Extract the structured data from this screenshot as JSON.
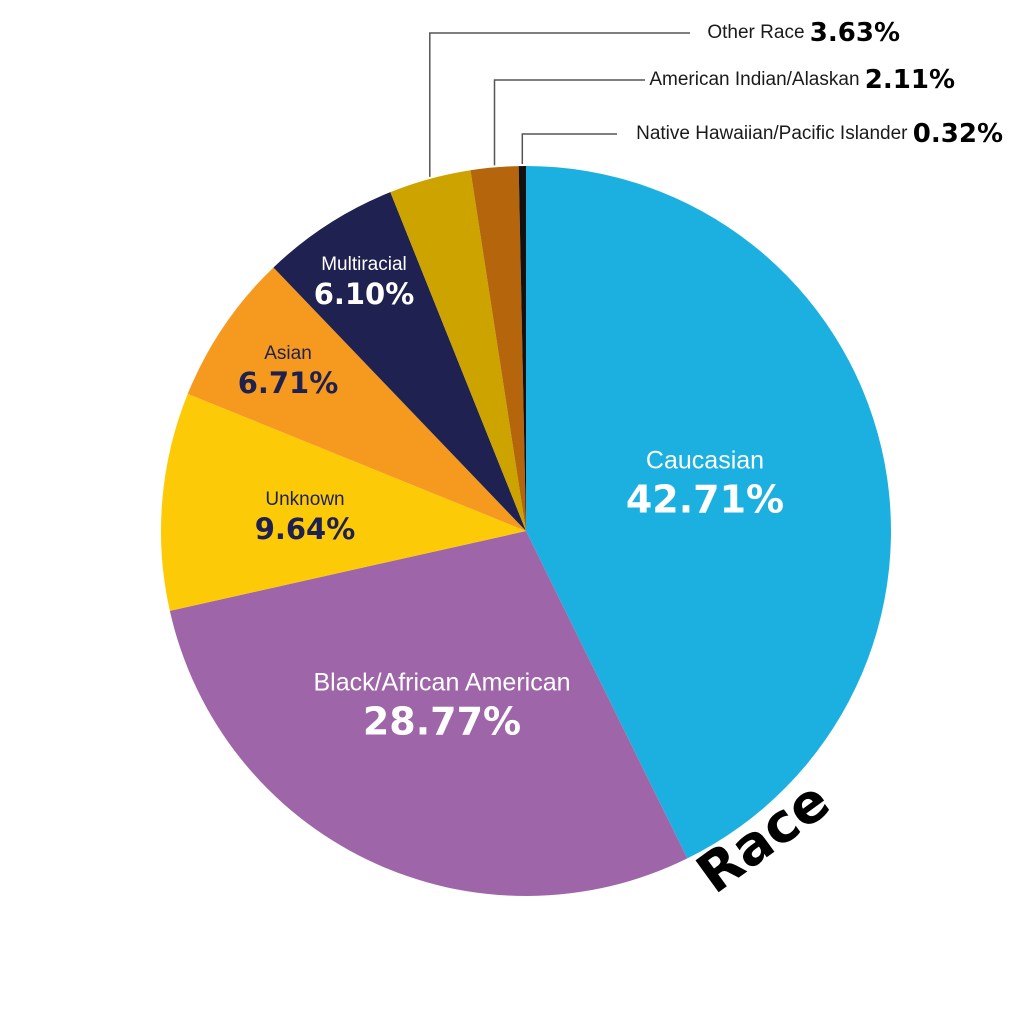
{
  "chart_data": {
    "type": "pie",
    "title": "Race",
    "slices": [
      {
        "label": "Caucasian",
        "value": 42.71,
        "display": "42.71%",
        "color": "#1cb0e0",
        "label_color": "#ffffff",
        "callout": false
      },
      {
        "label": "Black/African American",
        "value": 28.77,
        "display": "28.77%",
        "color": "#9e66a9",
        "label_color": "#ffffff",
        "callout": false
      },
      {
        "label": "Unknown",
        "value": 9.64,
        "display": "9.64%",
        "color": "#fdca08",
        "label_color": "#1e2150",
        "callout": false
      },
      {
        "label": "Asian",
        "value": 6.71,
        "display": "6.71%",
        "color": "#f6991f",
        "label_color": "#1e2150",
        "callout": false
      },
      {
        "label": "Multiracial",
        "value": 6.1,
        "display": "6.10%",
        "color": "#1f2150",
        "label_color": "#ffffff",
        "callout": false
      },
      {
        "label": "Other Race",
        "value": 3.63,
        "display": "3.63%",
        "color": "#cda300",
        "label_color": "#1a1a1a",
        "callout": true
      },
      {
        "label": "American Indian/Alaskan",
        "value": 2.11,
        "display": "2.11%",
        "color": "#b5650b",
        "label_color": "#1a1a1a",
        "callout": true
      },
      {
        "label": "Native Hawaiian/Pacific Islander",
        "value": 0.32,
        "display": "0.32%",
        "color": "#111111",
        "label_color": "#1a1a1a",
        "callout": true
      }
    ]
  }
}
